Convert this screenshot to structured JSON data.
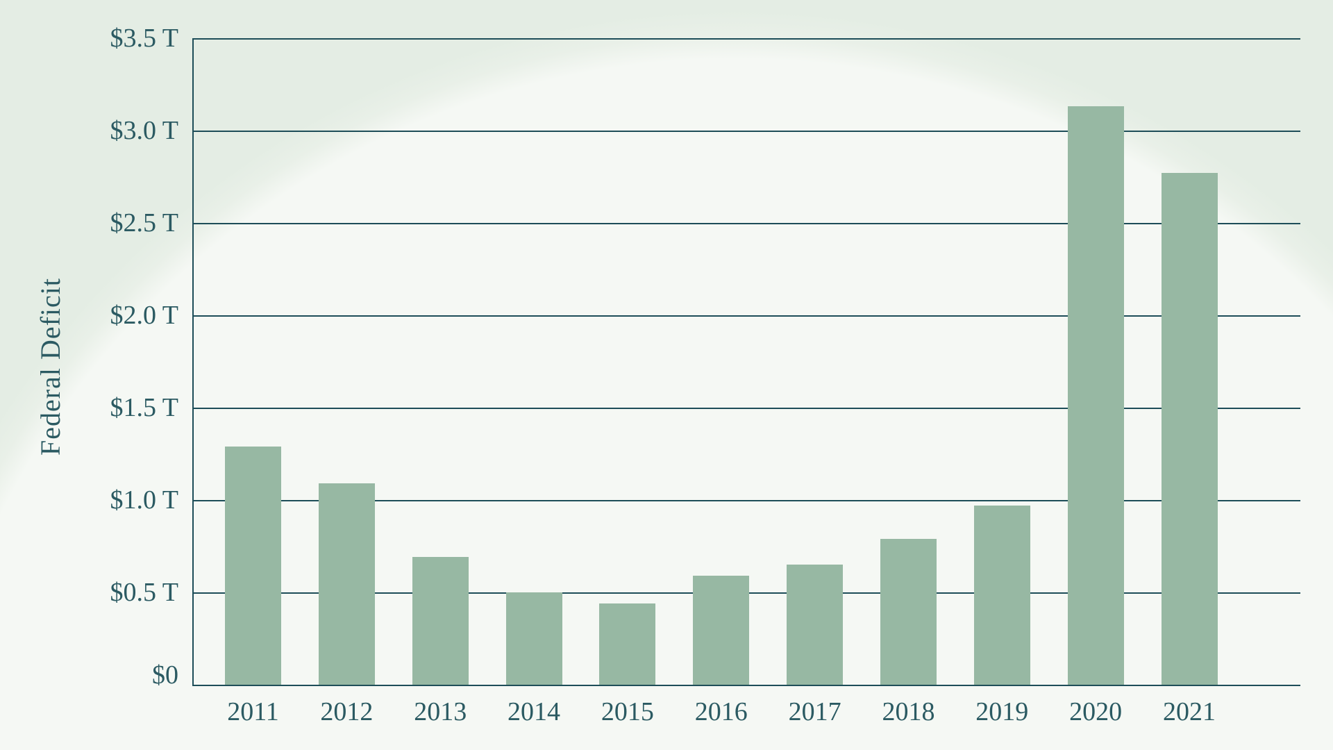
{
  "chart_data": {
    "type": "bar",
    "title": "",
    "xlabel": "",
    "ylabel": "Federal Deficit",
    "unit": "trillions of US dollars",
    "categories": [
      "2011",
      "2012",
      "2013",
      "2014",
      "2015",
      "2016",
      "2017",
      "2018",
      "2019",
      "2020",
      "2021"
    ],
    "values": [
      1.29,
      1.09,
      0.69,
      0.5,
      0.44,
      0.59,
      0.65,
      0.79,
      0.97,
      3.13,
      2.77
    ],
    "ylim": [
      0,
      3.5
    ],
    "ytick_step": 0.5,
    "ytick_labels": [
      "$0",
      "$0.5 T",
      "$1.0 T",
      "$1.5 T",
      "$2.0 T",
      "$2.5 T",
      "$3.0 T",
      "$3.5 T"
    ],
    "grid": true,
    "legend": false
  },
  "colors": {
    "background_outer": "#e4ede4",
    "background_circle": "#f5f8f4",
    "bar": "#97b8a3",
    "axis_line": "#1d4d58",
    "text": "#2b5a62"
  }
}
